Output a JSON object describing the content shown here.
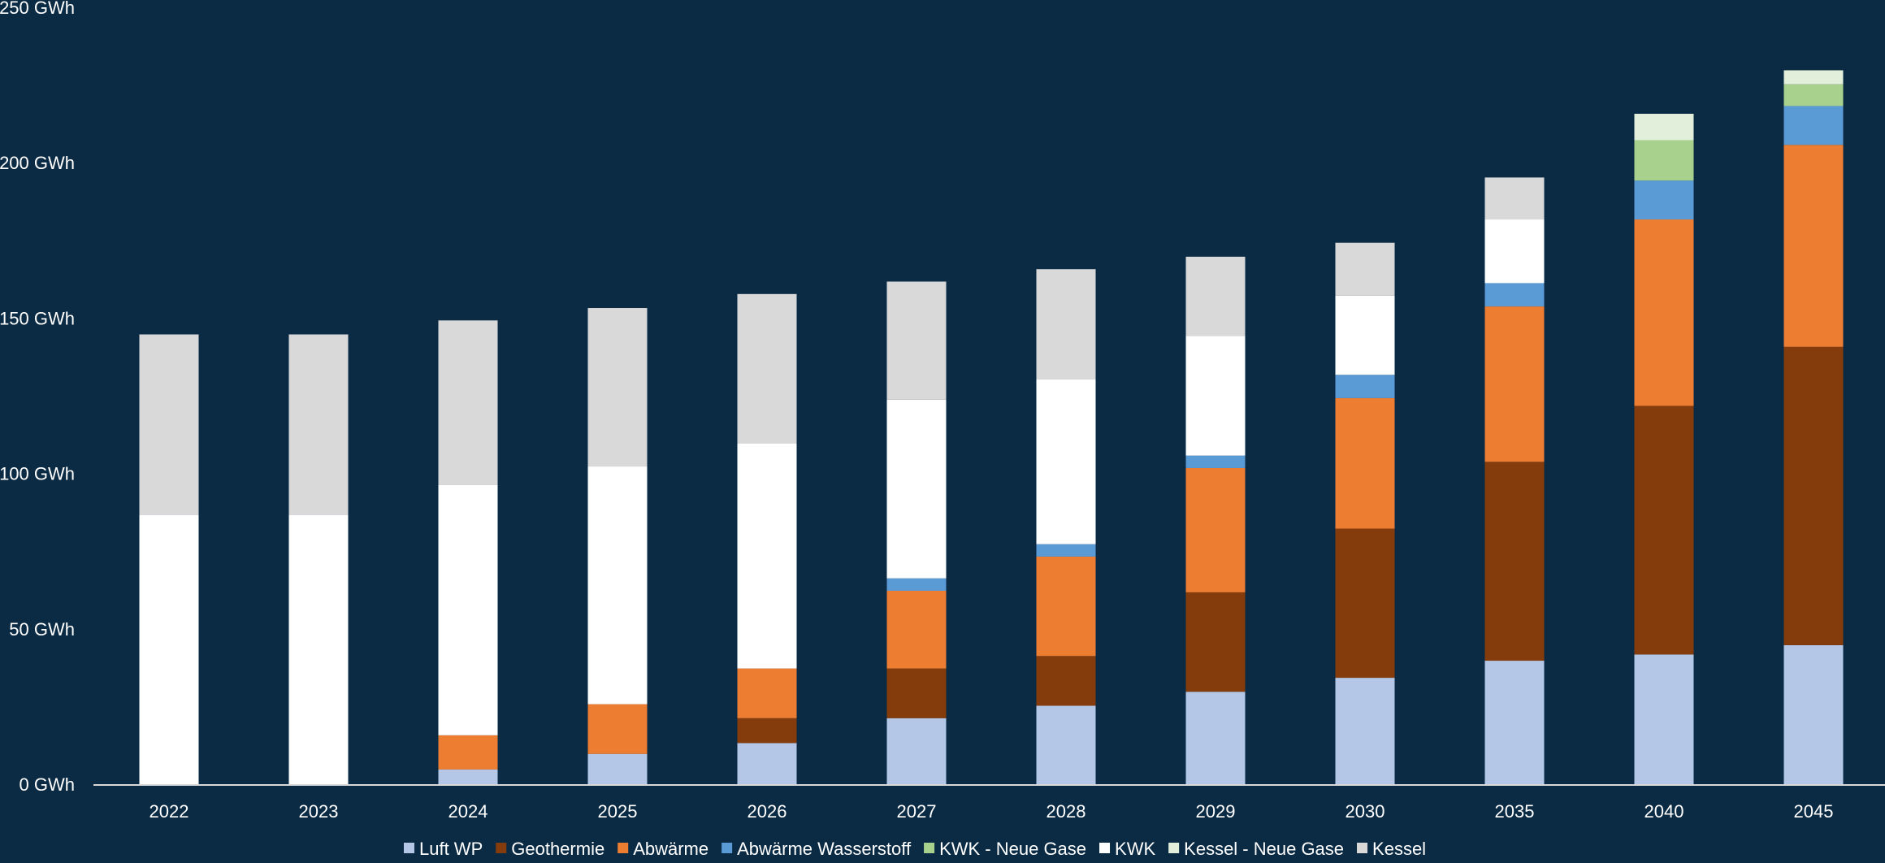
{
  "chart_data": {
    "type": "bar",
    "stacked": true,
    "categories": [
      "2022",
      "2023",
      "2024",
      "2025",
      "2026",
      "2027",
      "2028",
      "2029",
      "2030",
      "2035",
      "2040",
      "2045"
    ],
    "y_unit": "GWh",
    "ylim": [
      0,
      250
    ],
    "yticks": [
      "0 GWh",
      "50 GWh",
      "100 GWh",
      "150 GWh",
      "200 GWh",
      "250 GWh"
    ],
    "ytick_values": [
      0,
      50,
      100,
      150,
      200,
      250
    ],
    "grid": false,
    "legend_position": "bottom",
    "series": [
      {
        "name": "Luft WP",
        "color": "#b4c7e7",
        "values": [
          0,
          0,
          5,
          10,
          13.5,
          21.5,
          25.5,
          30,
          34.5,
          40,
          42,
          45
        ]
      },
      {
        "name": "Geothermie",
        "color": "#843c0c",
        "values": [
          0,
          0,
          0,
          0,
          8,
          16,
          16,
          32,
          48,
          64,
          80,
          96
        ]
      },
      {
        "name": "Abwärme",
        "color": "#ed7d31",
        "values": [
          0,
          0,
          11,
          16,
          16,
          25,
          32,
          40,
          42,
          50,
          60,
          65
        ]
      },
      {
        "name": "Abwärme Wasserstoff",
        "color": "#5b9bd5",
        "values": [
          0,
          0,
          0,
          0,
          0,
          4,
          4,
          4,
          7.5,
          7.5,
          12.5,
          12.5
        ]
      },
      {
        "name": "KWK - Neue Gase",
        "color": "#a9d18e",
        "values": [
          0,
          0,
          0,
          0,
          0,
          0,
          0,
          0,
          0,
          0,
          13,
          7
        ]
      },
      {
        "name": "KWK",
        "color": "#ffffff",
        "values": [
          87,
          87,
          80.5,
          76.5,
          72.5,
          57.5,
          53,
          38.5,
          25.5,
          20.5,
          0,
          0
        ]
      },
      {
        "name": "Kessel - Neue Gase",
        "color": "#e2efda",
        "values": [
          0,
          0,
          0,
          0,
          0,
          0,
          0,
          0,
          0,
          0,
          8.5,
          4.5
        ]
      },
      {
        "name": "Kessel",
        "color": "#d9d9d9",
        "values": [
          58,
          58,
          53,
          51,
          48,
          38,
          35.5,
          25.5,
          17,
          13.5,
          0,
          0
        ]
      }
    ]
  }
}
